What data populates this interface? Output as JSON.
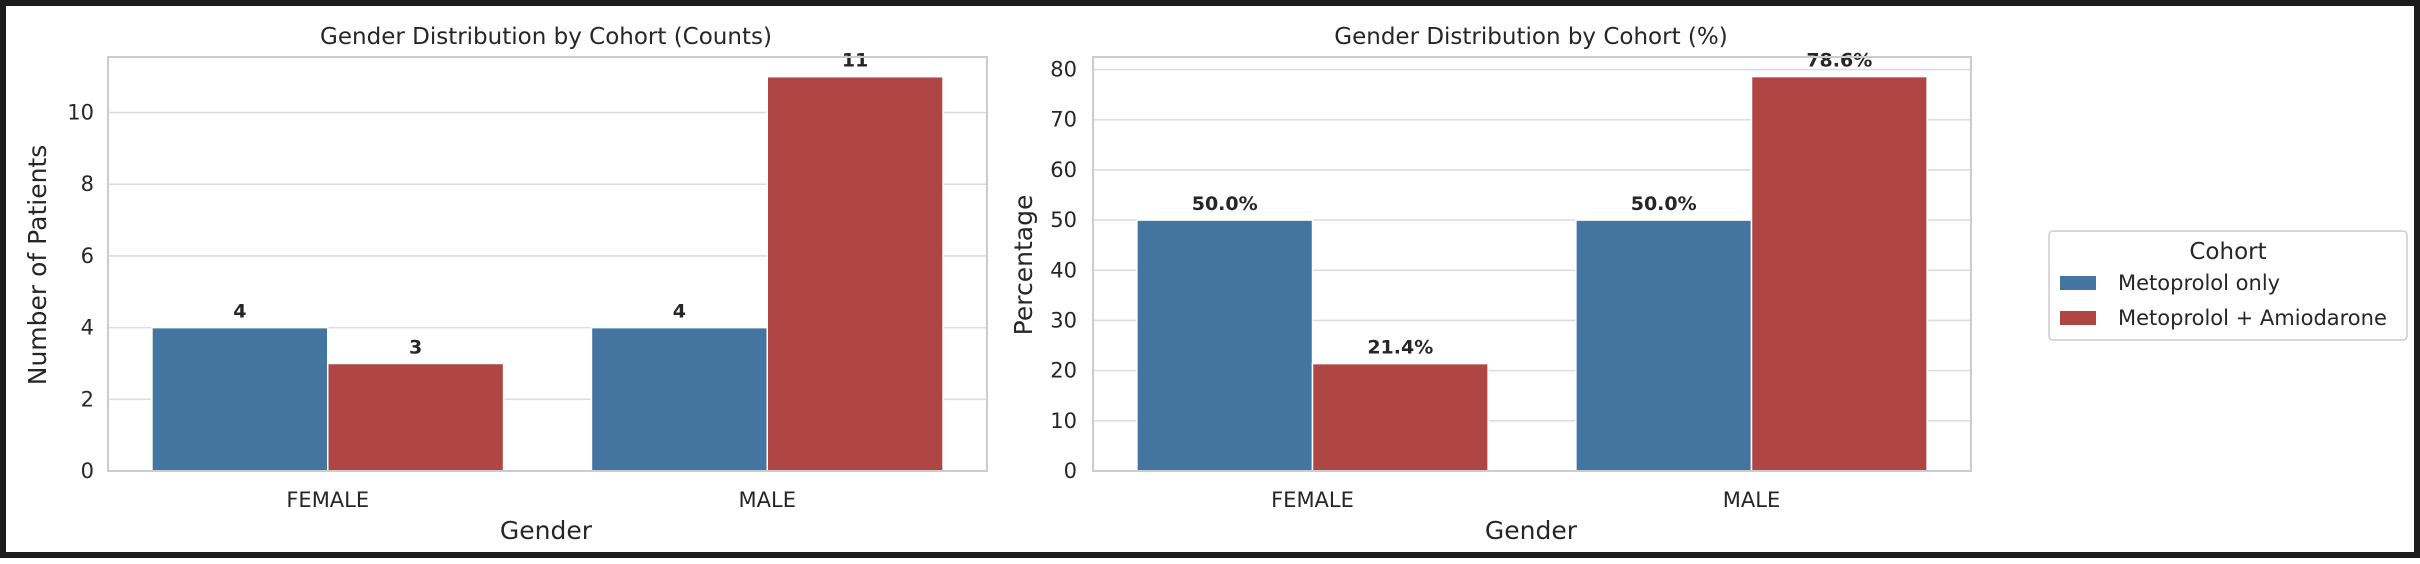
{
  "chart_data": [
    {
      "type": "bar",
      "title": "Gender Distribution by Cohort (Counts)",
      "xlabel": "Gender",
      "ylabel": "Number of Patients",
      "categories": [
        "FEMALE",
        "MALE"
      ],
      "ylim": [
        0,
        11.55
      ],
      "yticks": [
        0,
        2,
        4,
        6,
        8,
        10
      ],
      "grid": true,
      "series": [
        {
          "name": "Metoprolol only",
          "values": [
            4,
            4
          ],
          "labels": [
            "4",
            "4"
          ],
          "color": "#4474a0"
        },
        {
          "name": "Metoprolol + Amiodarone",
          "values": [
            3,
            11
          ],
          "labels": [
            "3",
            "11"
          ],
          "color": "#b04643"
        }
      ]
    },
    {
      "type": "bar",
      "title": "Gender Distribution by Cohort (%)",
      "xlabel": "Gender",
      "ylabel": "Percentage",
      "categories": [
        "FEMALE",
        "MALE"
      ],
      "ylim": [
        0,
        82.5
      ],
      "yticks": [
        0,
        10,
        20,
        30,
        40,
        50,
        60,
        70,
        80
      ],
      "grid": true,
      "series": [
        {
          "name": "Metoprolol only",
          "values": [
            50.0,
            50.0
          ],
          "labels": [
            "50.0%",
            "50.0%"
          ],
          "color": "#4474a0"
        },
        {
          "name": "Metoprolol + Amiodarone",
          "values": [
            21.4,
            78.6
          ],
          "labels": [
            "21.4%",
            "78.6%"
          ],
          "color": "#b04643"
        }
      ]
    }
  ],
  "legend": {
    "title": "Cohort",
    "placement": "right",
    "items": [
      {
        "label": "Metoprolol only",
        "color": "#4474a0"
      },
      {
        "label": "Metoprolol + Amiodarone",
        "color": "#b04643"
      }
    ]
  }
}
